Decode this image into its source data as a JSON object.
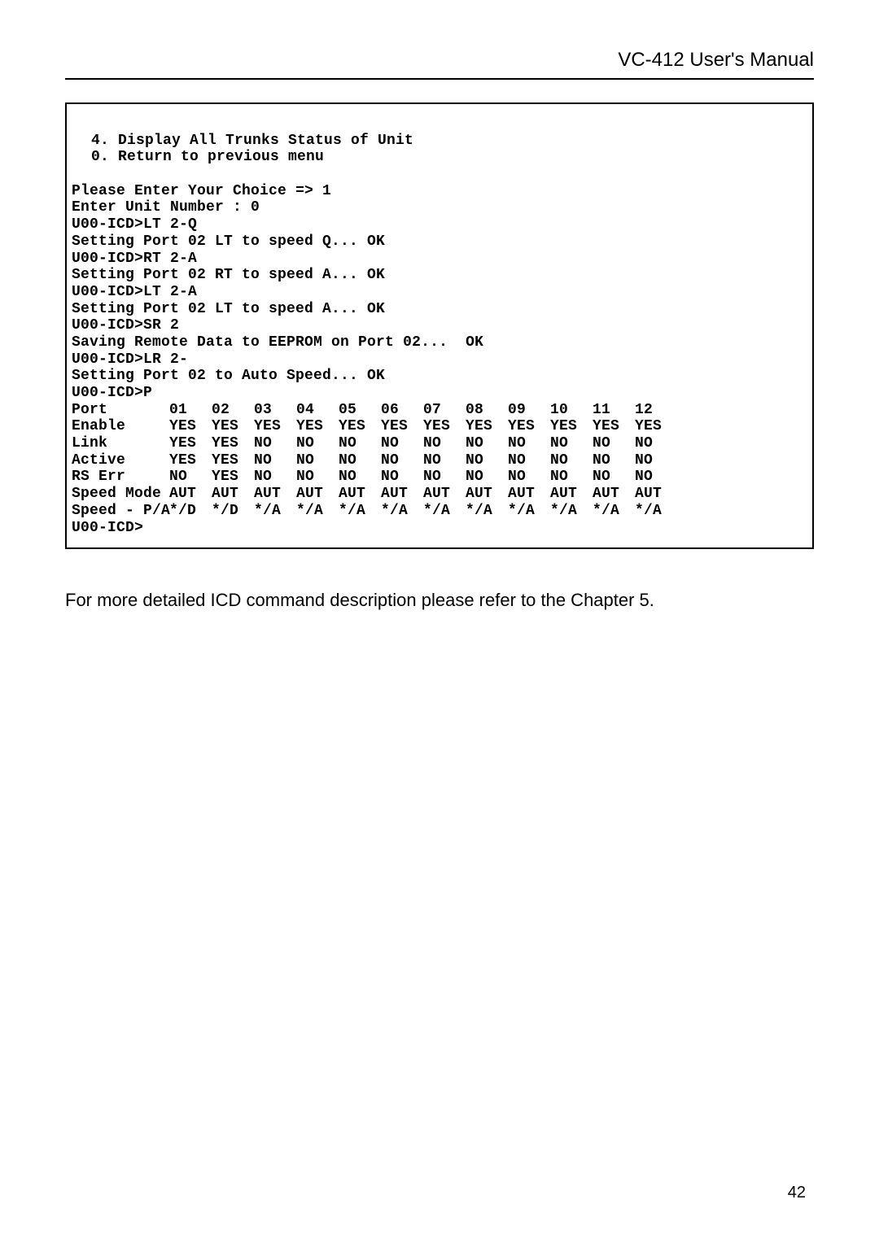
{
  "header": {
    "title": "VC-412  User's Manual"
  },
  "terminal": {
    "menu_lines": [
      "4. Display All Trunks Status of Unit",
      "0. Return to previous menu"
    ],
    "session_lines": [
      "Please Enter Your Choice => 1",
      "Enter Unit Number : 0",
      "U00-ICD>LT 2-Q",
      "Setting Port 02 LT to speed Q... OK",
      "U00-ICD>RT 2-A",
      "Setting Port 02 RT to speed A... OK",
      "U00-ICD>LT 2-A",
      "Setting Port 02 LT to speed A... OK",
      "U00-ICD>SR 2",
      "Saving Remote Data to EEPROM on Port 02...  OK",
      "U00-ICD>LR 2-",
      "Setting Port 02 to Auto Speed... OK",
      "U00-ICD>P"
    ],
    "table": {
      "headers": [
        "Port",
        "01",
        "02",
        "03",
        "04",
        "05",
        "06",
        "07",
        "08",
        "09",
        "10",
        "11",
        "12"
      ],
      "rows": [
        [
          "Enable",
          "YES",
          "YES",
          "YES",
          "YES",
          "YES",
          "YES",
          "YES",
          "YES",
          "YES",
          "YES",
          "YES",
          "YES"
        ],
        [
          "Link",
          "YES",
          "YES",
          "NO",
          "NO",
          "NO",
          "NO",
          "NO",
          "NO",
          "NO",
          "NO",
          "NO",
          "NO"
        ],
        [
          "Active",
          "YES",
          "YES",
          "NO",
          "NO",
          "NO",
          "NO",
          "NO",
          "NO",
          "NO",
          "NO",
          "NO",
          "NO"
        ],
        [
          "RS Err",
          "NO",
          "YES",
          "NO",
          "NO",
          "NO",
          "NO",
          "NO",
          "NO",
          "NO",
          "NO",
          "NO",
          "NO"
        ],
        [
          "Speed Mode",
          "AUT",
          "AUT",
          "AUT",
          "AUT",
          "AUT",
          "AUT",
          "AUT",
          "AUT",
          "AUT",
          "AUT",
          "AUT",
          "AUT"
        ],
        [
          "Speed - P/A",
          "*/D",
          "*/D",
          "*/A",
          "*/A",
          "*/A",
          "*/A",
          "*/A",
          "*/A",
          "*/A",
          "*/A",
          "*/A",
          "*/A"
        ]
      ]
    },
    "footer_line": "U00-ICD>"
  },
  "caption": "For more detailed ICD command description please refer to the Chapter 5.",
  "page_number": "42",
  "style": {
    "page_bg": "#ffffff",
    "text_color": "#000000",
    "border_color": "#000000",
    "mono_font": "Courier New",
    "body_font": "Arial",
    "header_fontsize": 24,
    "terminal_fontsize": 18,
    "caption_fontsize": 22,
    "pagenum_fontsize": 20
  }
}
